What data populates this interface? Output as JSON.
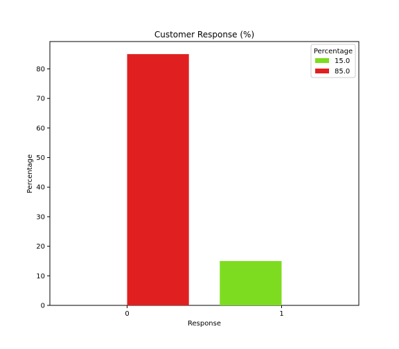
{
  "chart_data": {
    "type": "bar",
    "title": "Customer Response (%)",
    "xlabel": "Response",
    "ylabel": "Percentage",
    "categories": [
      "0",
      "1"
    ],
    "series": [
      {
        "name": "15.0",
        "color": "#7ddc1f",
        "values": [
          0,
          15.0
        ]
      },
      {
        "name": "85.0",
        "color": "#e02020",
        "values": [
          85.0,
          0
        ]
      }
    ],
    "ylim": [
      0,
      89.25
    ],
    "yticks": [
      0,
      10,
      20,
      30,
      40,
      50,
      60,
      70,
      80
    ],
    "legend": {
      "title": "Percentage",
      "placement": "top-right"
    },
    "grid": false
  }
}
